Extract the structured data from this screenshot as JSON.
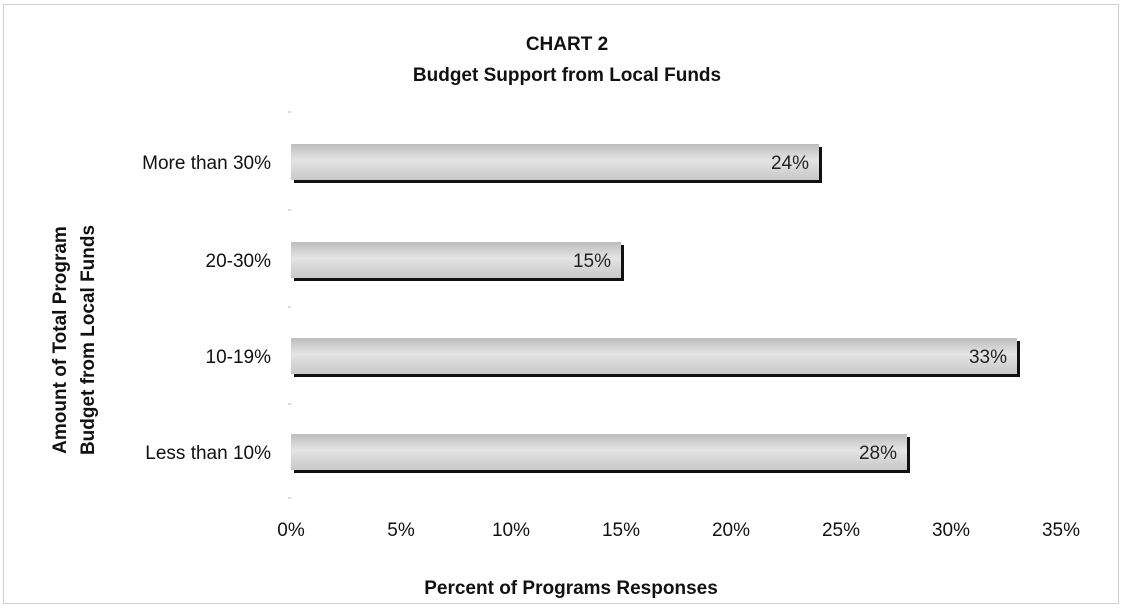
{
  "chart_data": {
    "type": "bar",
    "orientation": "horizontal",
    "title": "CHART 2",
    "subtitle": "Budget Support from Local Funds",
    "categories": [
      "More than 30%",
      "20-30%",
      "10-19%",
      "Less than 10%"
    ],
    "values": [
      24,
      15,
      33,
      28
    ],
    "data_labels": [
      "24%",
      "15%",
      "33%",
      "28%"
    ],
    "xlabel": "Percent of Programs Responses",
    "ylabel_lines": [
      "Amount of Total Program",
      "Budget from Local Funds"
    ],
    "xlim": [
      0,
      35
    ],
    "xticks": [
      0,
      5,
      10,
      15,
      20,
      25,
      30,
      35
    ],
    "xtick_labels": [
      "0%",
      "5%",
      "10%",
      "15%",
      "20%",
      "25%",
      "30%",
      "35%"
    ],
    "unit": "%",
    "grid": false,
    "legend": "none",
    "colors": {
      "bar_fill": "#d3d3d3",
      "bar_shadow": "#111111"
    }
  }
}
